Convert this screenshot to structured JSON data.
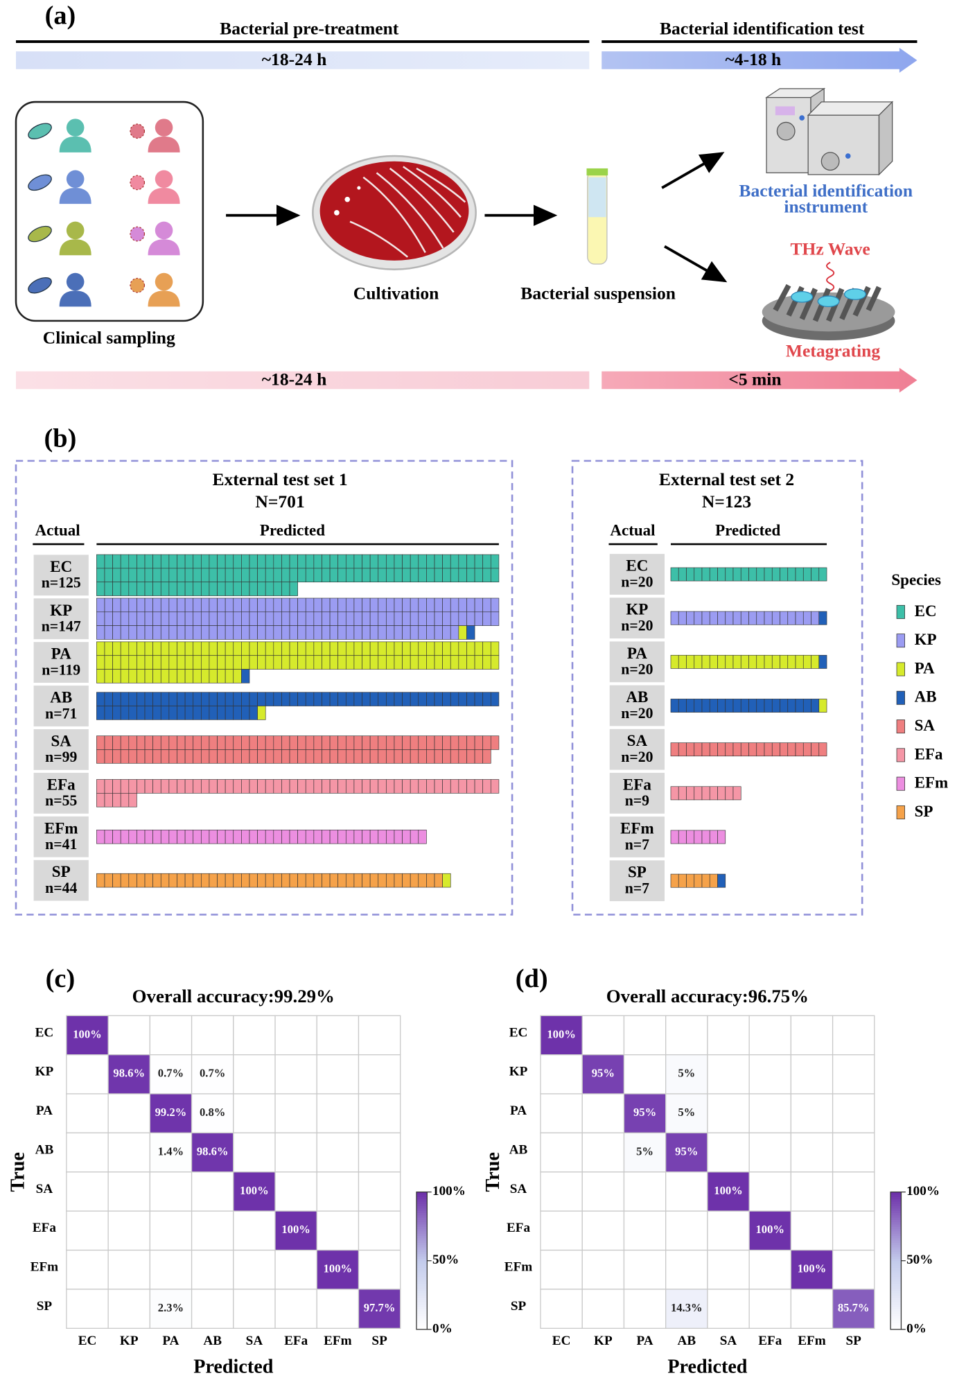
{
  "panel_a": {
    "label": "(a)",
    "left_header": "Bacterial pre-treatment",
    "right_header": "Bacterial identification test",
    "top_left_time": "~18-24 h",
    "top_right_time": "~4-18 h",
    "step_1": "Clinical sampling",
    "step_2": "Cultivation",
    "step_3": "Bacterial suspension",
    "instrument_line_1": "Bacterial identification",
    "instrument_line_2": "instrument",
    "thz": "THz Wave",
    "metagrating": "Metagrating",
    "bottom_left_time": "~18-24 h",
    "bottom_right_time": "<5 min"
  },
  "panel_b": {
    "label": "(b)",
    "legend": {
      "title": "Species",
      "items": [
        {
          "name": "EC",
          "color": "#3dbfa8"
        },
        {
          "name": "KP",
          "color": "#9b9cf2"
        },
        {
          "name": "PA",
          "color": "#d6ea2c"
        },
        {
          "name": "AB",
          "color": "#2160b8"
        },
        {
          "name": "SA",
          "color": "#ef7f80"
        },
        {
          "name": "EFa",
          "color": "#f596a6"
        },
        {
          "name": "EFm",
          "color": "#ec8ee0"
        },
        {
          "name": "SP",
          "color": "#f5a24a"
        }
      ]
    },
    "sets": [
      {
        "title": "External test set 1",
        "n_total": "N=701",
        "actual": "Actual",
        "predicted": "Predicted",
        "rows": [
          {
            "label": "EC",
            "n": "n=125",
            "counts": [
              125,
              0,
              0,
              0,
              0,
              0,
              0,
              0
            ]
          },
          {
            "label": "KP",
            "n": "n=147",
            "counts": [
              0,
              145,
              1,
              1,
              0,
              0,
              0,
              0
            ]
          },
          {
            "label": "PA",
            "n": "n=119",
            "counts": [
              0,
              0,
              118,
              1,
              0,
              0,
              0,
              0
            ]
          },
          {
            "label": "AB",
            "n": "n=71",
            "counts": [
              0,
              0,
              1,
              70,
              0,
              0,
              0,
              0
            ]
          },
          {
            "label": "SA",
            "n": "n=99",
            "counts": [
              0,
              0,
              0,
              0,
              99,
              0,
              0,
              0
            ]
          },
          {
            "label": "EFa",
            "n": "n=55",
            "counts": [
              0,
              0,
              0,
              0,
              0,
              55,
              0,
              0
            ]
          },
          {
            "label": "EFm",
            "n": "n=41",
            "counts": [
              0,
              0,
              0,
              0,
              0,
              0,
              41,
              0
            ]
          },
          {
            "label": "SP",
            "n": "n=44",
            "counts": [
              0,
              0,
              1,
              0,
              0,
              0,
              0,
              43
            ]
          }
        ]
      },
      {
        "title": "External test set 2",
        "n_total": "N=123",
        "actual": "Actual",
        "predicted": "Predicted",
        "rows": [
          {
            "label": "EC",
            "n": "n=20",
            "counts": [
              20,
              0,
              0,
              0,
              0,
              0,
              0,
              0
            ]
          },
          {
            "label": "KP",
            "n": "n=20",
            "counts": [
              0,
              19,
              0,
              1,
              0,
              0,
              0,
              0
            ]
          },
          {
            "label": "PA",
            "n": "n=20",
            "counts": [
              0,
              0,
              19,
              1,
              0,
              0,
              0,
              0
            ]
          },
          {
            "label": "AB",
            "n": "n=20",
            "counts": [
              0,
              0,
              1,
              19,
              0,
              0,
              0,
              0
            ]
          },
          {
            "label": "SA",
            "n": "n=20",
            "counts": [
              0,
              0,
              0,
              0,
              20,
              0,
              0,
              0
            ]
          },
          {
            "label": "EFa",
            "n": "n=9",
            "counts": [
              0,
              0,
              0,
              0,
              0,
              9,
              0,
              0
            ]
          },
          {
            "label": "EFm",
            "n": "n=7",
            "counts": [
              0,
              0,
              0,
              0,
              0,
              0,
              7,
              0
            ]
          },
          {
            "label": "SP",
            "n": "n=7",
            "counts": [
              0,
              0,
              0,
              1,
              0,
              0,
              0,
              6
            ]
          }
        ]
      }
    ]
  },
  "panel_c": {
    "label": "(c)",
    "title": "Overall accuracy:99.29%",
    "y_label": "True",
    "x_label": "Predicted",
    "categories": [
      "EC",
      "KP",
      "PA",
      "AB",
      "SA",
      "EFa",
      "EFm",
      "SP"
    ],
    "values": [
      [
        100,
        0,
        0,
        0,
        0,
        0,
        0,
        0
      ],
      [
        0,
        98.6,
        0.7,
        0.7,
        0,
        0,
        0,
        0
      ],
      [
        0,
        0,
        99.2,
        0.8,
        0,
        0,
        0,
        0
      ],
      [
        0,
        0,
        1.4,
        98.6,
        0,
        0,
        0,
        0
      ],
      [
        0,
        0,
        0,
        0,
        100,
        0,
        0,
        0
      ],
      [
        0,
        0,
        0,
        0,
        0,
        100,
        0,
        0
      ],
      [
        0,
        0,
        0,
        0,
        0,
        0,
        100,
        0
      ],
      [
        0,
        0,
        2.3,
        0,
        0,
        0,
        0,
        97.7
      ]
    ],
    "value_labels": [
      [
        "100%",
        null,
        null,
        null,
        null,
        null,
        null,
        null
      ],
      [
        null,
        "98.6%",
        "0.7%",
        "0.7%",
        null,
        null,
        null,
        null
      ],
      [
        null,
        null,
        "99.2%",
        "0.8%",
        null,
        null,
        null,
        null
      ],
      [
        null,
        null,
        "1.4%",
        "98.6%",
        null,
        null,
        null,
        null
      ],
      [
        null,
        null,
        null,
        null,
        "100%",
        null,
        null,
        null
      ],
      [
        null,
        null,
        null,
        null,
        null,
        "100%",
        null,
        null
      ],
      [
        null,
        null,
        null,
        null,
        null,
        null,
        "100%",
        null
      ],
      [
        null,
        null,
        "2.3%",
        null,
        null,
        null,
        null,
        "97.7%"
      ]
    ],
    "colormap": [
      "#ffffff",
      "#c3cbec",
      "#6e32aa"
    ],
    "clim": [
      0,
      100
    ],
    "cticks": [
      {
        "value": 0,
        "label": "0%"
      },
      {
        "value": 50,
        "label": "50%"
      },
      {
        "value": 100,
        "label": "100%"
      }
    ]
  },
  "panel_d": {
    "label": "(d)",
    "title": "Overall accuracy:96.75%",
    "y_label": "True",
    "x_label": "Predicted",
    "categories": [
      "EC",
      "KP",
      "PA",
      "AB",
      "SA",
      "EFa",
      "EFm",
      "SP"
    ],
    "values": [
      [
        100,
        0,
        0,
        0,
        0,
        0,
        0,
        0
      ],
      [
        0,
        95,
        0,
        5,
        0,
        0,
        0,
        0
      ],
      [
        0,
        0,
        95,
        5,
        0,
        0,
        0,
        0
      ],
      [
        0,
        0,
        5,
        95,
        0,
        0,
        0,
        0
      ],
      [
        0,
        0,
        0,
        0,
        100,
        0,
        0,
        0
      ],
      [
        0,
        0,
        0,
        0,
        0,
        100,
        0,
        0
      ],
      [
        0,
        0,
        0,
        0,
        0,
        0,
        100,
        0
      ],
      [
        0,
        0,
        0,
        14.3,
        0,
        0,
        0,
        85.7
      ]
    ],
    "value_labels": [
      [
        "100%",
        null,
        null,
        null,
        null,
        null,
        null,
        null
      ],
      [
        null,
        "95%",
        null,
        "5%",
        null,
        null,
        null,
        null
      ],
      [
        null,
        null,
        "95%",
        "5%",
        null,
        null,
        null,
        null
      ],
      [
        null,
        null,
        "5%",
        "95%",
        null,
        null,
        null,
        null
      ],
      [
        null,
        null,
        null,
        null,
        "100%",
        null,
        null,
        null
      ],
      [
        null,
        null,
        null,
        null,
        null,
        "100%",
        null,
        null
      ],
      [
        null,
        null,
        null,
        null,
        null,
        null,
        "100%",
        null
      ],
      [
        null,
        null,
        null,
        "14.3%",
        null,
        null,
        null,
        "85.7%"
      ]
    ],
    "colormap": [
      "#ffffff",
      "#c3cbec",
      "#6e32aa"
    ],
    "clim": [
      0,
      100
    ],
    "cticks": [
      {
        "value": 0,
        "label": "0%"
      },
      {
        "value": 50,
        "label": "50%"
      },
      {
        "value": 100,
        "label": "100%"
      }
    ]
  }
}
